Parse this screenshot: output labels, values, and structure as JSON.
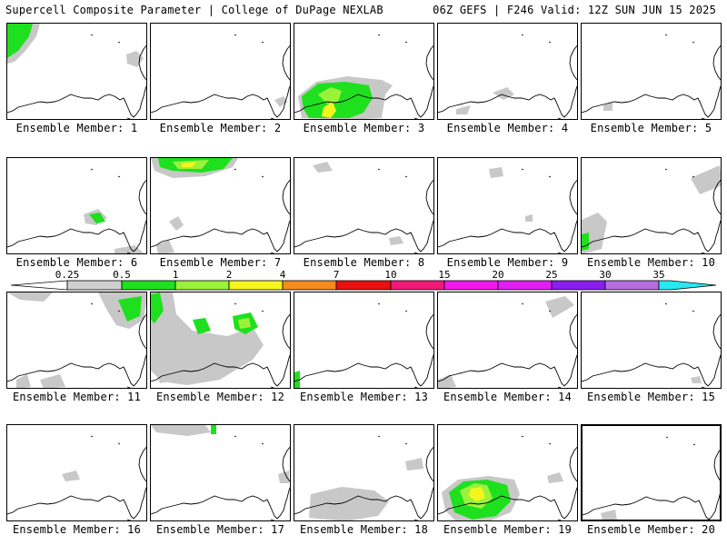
{
  "header": {
    "left": "Supercell Composite Parameter | College of DuPage NEXLAB",
    "right": "06Z GEFS | F246 Valid: 12Z SUN JUN 15 2025"
  },
  "colorbar": {
    "ticks": [
      "0.25",
      "0.5",
      "1",
      "2",
      "4",
      "7",
      "10",
      "15",
      "20",
      "25",
      "30",
      "35"
    ],
    "colors": [
      "#d0d0d0",
      "#1fe01f",
      "#9bf23a",
      "#f5f51e",
      "#f58a1e",
      "#e81010",
      "#f01a78",
      "#f018e8",
      "#e01ef0",
      "#8a1ef0",
      "#b46ee0",
      "#28e8f0"
    ]
  },
  "palette": {
    "gray": "#c8c8c8",
    "green": "#1fe01f",
    "lightgreen": "#9bf23a",
    "yellow": "#f5f51e"
  },
  "panels": [
    {
      "label": "Ensemble Member: 1"
    },
    {
      "label": "Ensemble Member: 2"
    },
    {
      "label": "Ensemble Member: 3"
    },
    {
      "label": "Ensemble Member: 4"
    },
    {
      "label": "Ensemble Member: 5"
    },
    {
      "label": "Ensemble Member: 6"
    },
    {
      "label": "Ensemble Member: 7"
    },
    {
      "label": "Ensemble Member: 8"
    },
    {
      "label": "Ensemble Member: 9"
    },
    {
      "label": "Ensemble Member: 10"
    },
    {
      "label": "Ensemble Member: 11"
    },
    {
      "label": "Ensemble Member: 12"
    },
    {
      "label": "Ensemble Member: 13"
    },
    {
      "label": "Ensemble Member: 14"
    },
    {
      "label": "Ensemble Member: 15"
    },
    {
      "label": "Ensemble Member: 16"
    },
    {
      "label": "Ensemble Member: 17"
    },
    {
      "label": "Ensemble Member: 18"
    },
    {
      "label": "Ensemble Member: 19"
    },
    {
      "label": "Ensemble Member: 20"
    }
  ]
}
